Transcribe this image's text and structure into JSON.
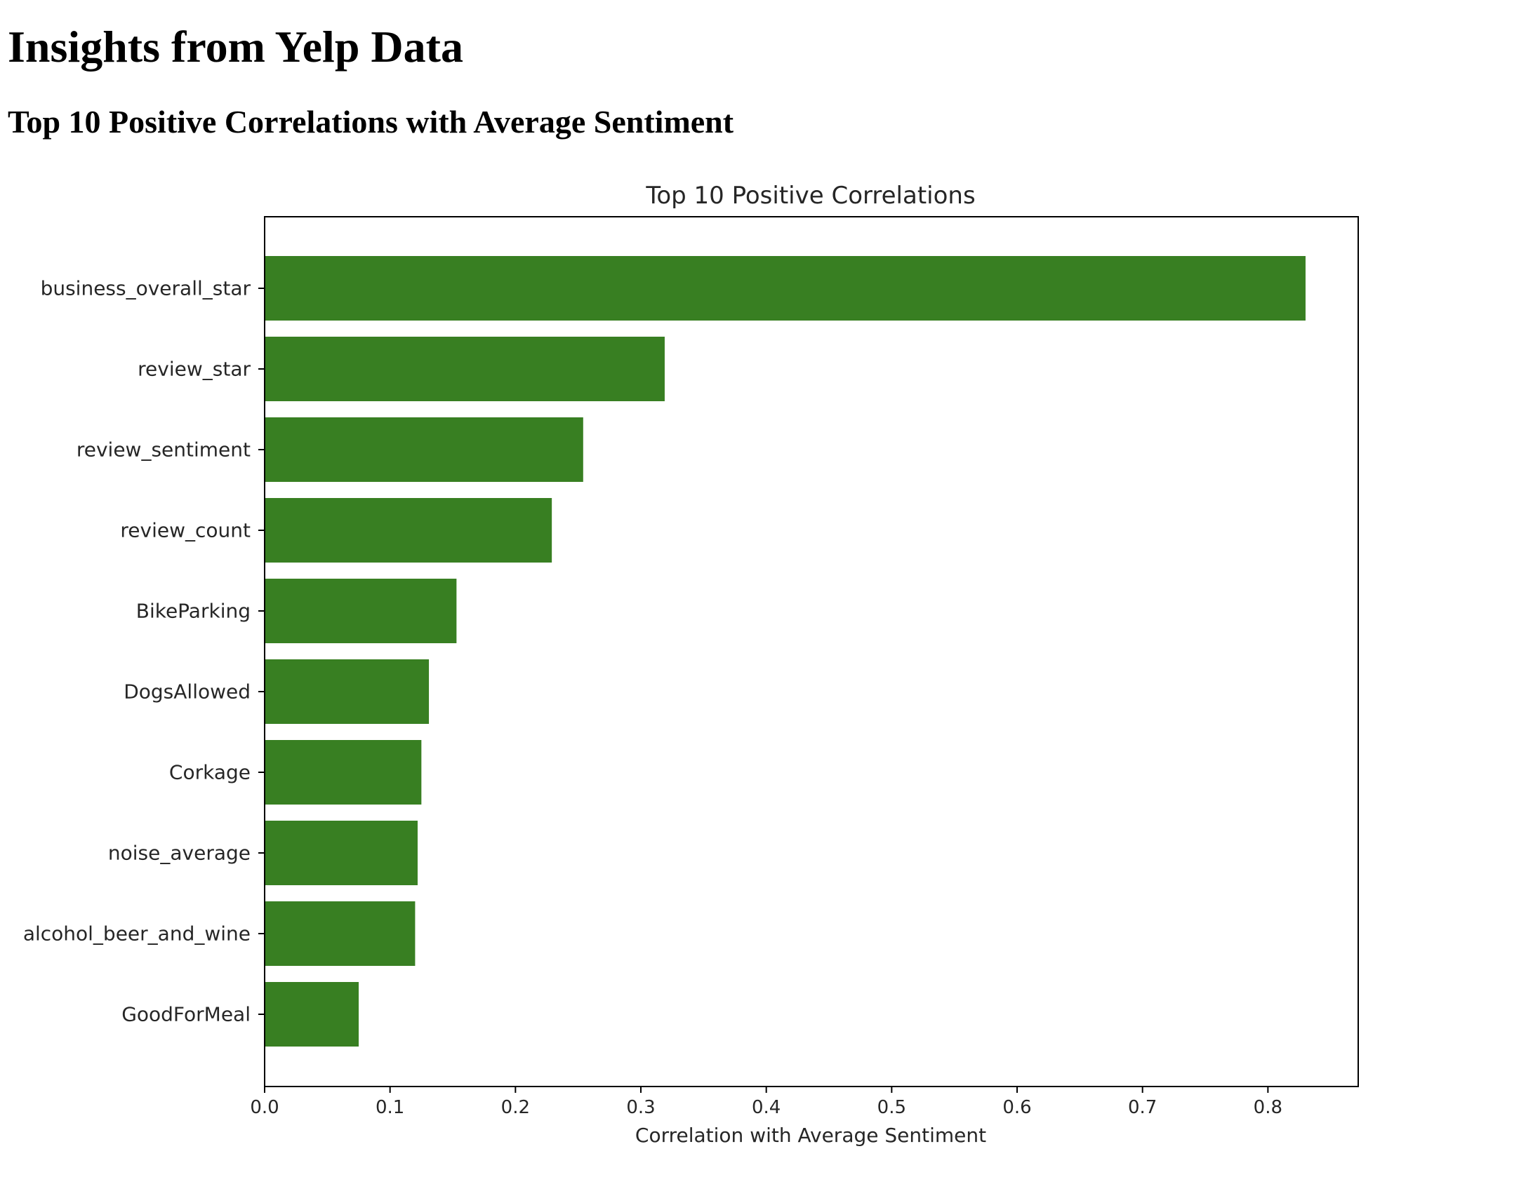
{
  "page": {
    "title": "Insights from Yelp Data",
    "section_title": "Top 10 Positive Correlations with Average Sentiment"
  },
  "chart_data": {
    "type": "bar",
    "orientation": "horizontal",
    "title": "Top 10 Positive Correlations",
    "xlabel": "Correlation with Average Sentiment",
    "ylabel": "",
    "xlim": [
      0,
      0.872
    ],
    "x_ticks": [
      0.0,
      0.1,
      0.2,
      0.3,
      0.4,
      0.5,
      0.6,
      0.7,
      0.8
    ],
    "x_tick_labels": [
      "0.0",
      "0.1",
      "0.2",
      "0.3",
      "0.4",
      "0.5",
      "0.6",
      "0.7",
      "0.8"
    ],
    "categories": [
      "business_overall_star",
      "review_star",
      "review_sentiment",
      "review_count",
      "BikeParking",
      "DogsAllowed",
      "Corkage",
      "noise_average",
      "alcohol_beer_and_wine",
      "GoodForMeal"
    ],
    "values": [
      0.83,
      0.319,
      0.254,
      0.229,
      0.153,
      0.131,
      0.125,
      0.122,
      0.12,
      0.075
    ],
    "bar_color": "#387f22",
    "grid": false,
    "legend": "none"
  }
}
